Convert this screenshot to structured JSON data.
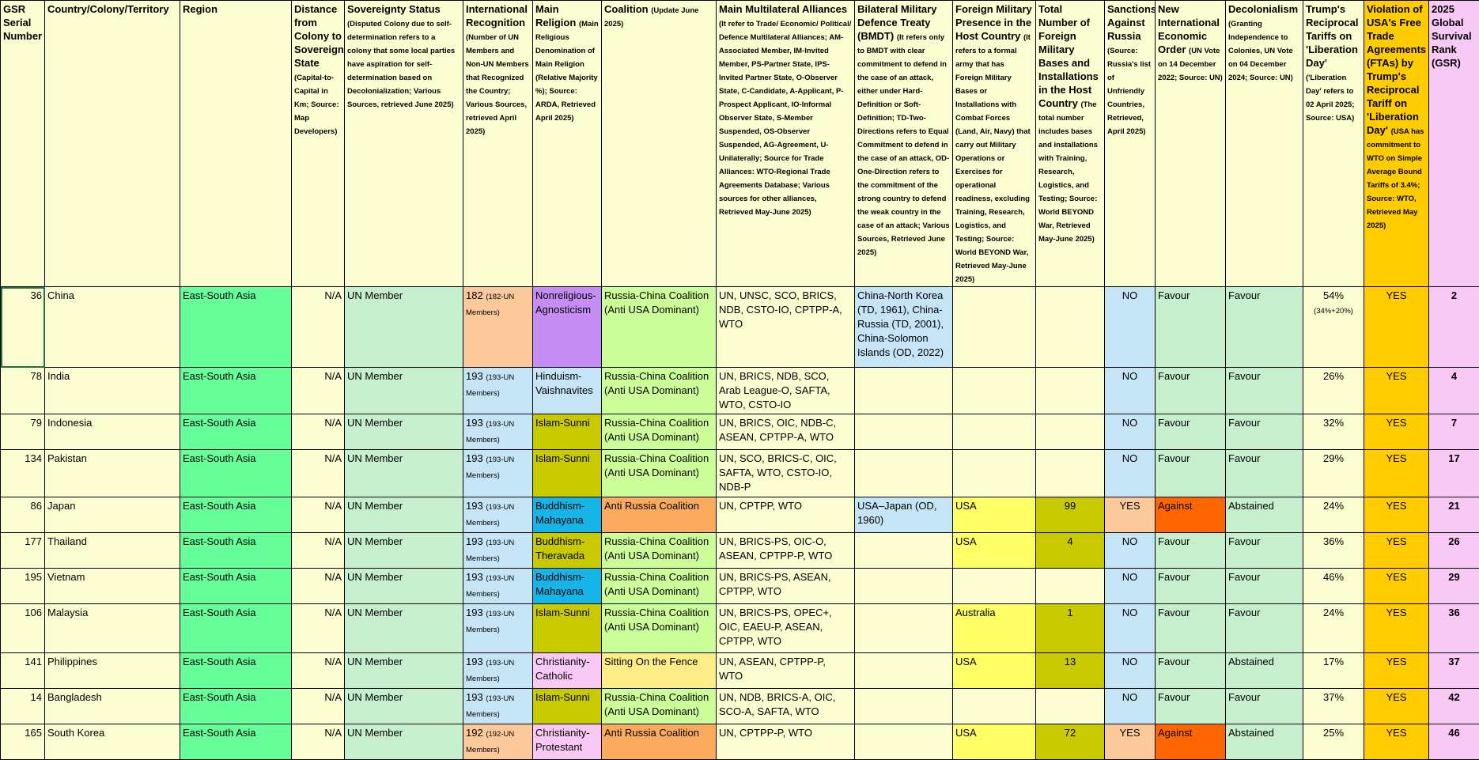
{
  "headers": {
    "serial": "GSR Serial Number",
    "country": "Country/Colony/Territory",
    "region": "Region",
    "distance": "Distance from Colony to Sovereign State",
    "distance_note": "(Capital-to-Capital in Km; Source: Map Developers)",
    "sovereignty": "Sovereignty Status",
    "sovereignty_note": "(Disputed Colony due to self-determination refers to a colony that some local parties have aspiration for self-determination based on Decolonialization; Various Sources, retrieved June 2025)",
    "recognition": "International Recognition",
    "recognition_note": "(Number of UN Members and Non-UN Members that Recognized the Country; Various Sources, retrieved April 2025)",
    "religion": "Main Religion",
    "religion_note": "(Main Religious Denomination of Main Religion (Relative Majority %); Source: ARDA, Retrieved April 2025)",
    "coalition": "Coalition",
    "coalition_note": "(Update June 2025)",
    "alliances": "Main Multilateral Alliances",
    "alliances_note": "(It refer to Trade/ Economic/ Political/ Defence Multilateral Alliances; AM-Associated Member, IM-Invited Member, PS-Partner State, IPS-Invited Partner State, O-Observer State, C-Candidate, A-Applicant, P-Prospect Applicant, IO-Informal Observer State, S-Member Suspended, OS-Observer Suspended, AG-Agreement, U-Unilaterally; Source for Trade Alliances: WTO-Regional Trade Agreements Database; Various sources for other alliances, Retrieved May-June 2025)",
    "bmdt": "Bilateral Military Defence Treaty (BMDT)",
    "bmdt_note": "(It refers only to BMDT with clear commitment to defend in the case of an attack, either under Hard-Definition or Soft-Definition; TD-Two-Directions refers to Equal Commitment to defend in the case of an attack, OD-One-Direction refers to the commitment of the strong country to defend the weak country in the case of an attack; Various Sources, Retrieved June 2025)",
    "fmp": "Foreign Military Presence in the Host Country",
    "fmp_note": "(It refers to a formal army that has Foreign Military Bases or Installations with Combat Forces (Land, Air, Navy) that carry out Military Operations or Exercises for operational readiness, excluding Training, Research, Logistics, and Testing; Source: World BEYOND War, Retrieved May-June 2025)",
    "bases": "Total Number of Foreign Military Bases and Installations in the Host Country",
    "bases_note": "(The total number includes bases and installations with Training, Research, Logistics, and Testing; Source: World BEYOND War, Retrieved May-June 2025)",
    "sanctions": "Sanctions Against Russia",
    "sanctions_note": "(Source: Russia's list of Unfriendly Countries, Retrieved, April 2025)",
    "nieo": "New International Economic Order",
    "nieo_note": "(UN Vote on 14 December 2022; Source: UN)",
    "decol": "Decolonialism",
    "decol_note": "(Granting Independence to Colonies, UN Vote on 04 December 2024; Source: UN)",
    "tariffs": "Trump's Reciprocal Tariffs on 'Liberation Day'",
    "tariffs_note": "('Liberation Day' refers to 02 April 2025; Source: USA)",
    "fta": "Violation of USA's Free Trade Agreements (FTAs) by Trump's Reciprocal Tariff on 'Liberation Day'",
    "fta_note": "(USA has commitment to WTO on Simple Average Bound Tariffs of 3.4%; Source: WTO, Retrieved May 2025)",
    "rank": "2025 Global Survival Rank (GSR)"
  },
  "rows": [
    {
      "serial": "36",
      "country": "China",
      "region": "East-South Asia",
      "distance": "N/A",
      "status": "UN Member",
      "recognition": "182",
      "recognition_detail": "(182-UN Members)",
      "religion": "Nonreligious-Agnosticism",
      "coalition": "Russia-China Coalition (Anti USA Dominant)",
      "alliances": "UN, UNSC, SCO, BRICS, NDB, CSTO-IO, CPTPP-A, WTO",
      "bmdt": "China-North Korea (TD, 1961), China-Russia (TD, 2001), China-Solomon Islands (OD, 2022)",
      "fmp": "",
      "bases": "",
      "sanctions": "NO",
      "nieo": "Favour",
      "decol": "Favour",
      "tariff": "54%",
      "tariff_detail": "(34%+20%)",
      "fta": "YES",
      "rank": "2"
    },
    {
      "serial": "78",
      "country": "India",
      "region": "East-South Asia",
      "distance": "N/A",
      "status": "UN Member",
      "recognition": "193",
      "recognition_detail": "(193-UN Members)",
      "religion": "Hinduism-Vaishnavites",
      "coalition": "Russia-China Coalition (Anti USA Dominant)",
      "alliances": "UN, BRICS, NDB, SCO, Arab League-O, SAFTA, WTO, CSTO-IO",
      "bmdt": "",
      "fmp": "",
      "bases": "",
      "sanctions": "NO",
      "nieo": "Favour",
      "decol": "Favour",
      "tariff": "26%",
      "tariff_detail": "",
      "fta": "YES",
      "rank": "4"
    },
    {
      "serial": "79",
      "country": "Indonesia",
      "region": "East-South Asia",
      "distance": "N/A",
      "status": "UN Member",
      "recognition": "193",
      "recognition_detail": "(193-UN Members)",
      "religion": "Islam-Sunni",
      "coalition": "Russia-China Coalition (Anti USA Dominant)",
      "alliances": "UN, BRICS, OIC, NDB-C, ASEAN, CPTPP-A, WTO",
      "bmdt": "",
      "fmp": "",
      "bases": "",
      "sanctions": "NO",
      "nieo": "Favour",
      "decol": "Favour",
      "tariff": "32%",
      "tariff_detail": "",
      "fta": "YES",
      "rank": "7"
    },
    {
      "serial": "134",
      "country": "Pakistan",
      "region": "East-South Asia",
      "distance": "N/A",
      "status": "UN Member",
      "recognition": "193",
      "recognition_detail": "(193-UN Members)",
      "religion": "Islam-Sunni",
      "coalition": "Russia-China Coalition (Anti USA Dominant)",
      "alliances": "UN, SCO, BRICS-C, OIC, SAFTA, WTO, CSTO-IO, NDB-P",
      "bmdt": "",
      "fmp": "",
      "bases": "",
      "sanctions": "NO",
      "nieo": "Favour",
      "decol": "Favour",
      "tariff": "29%",
      "tariff_detail": "",
      "fta": "YES",
      "rank": "17"
    },
    {
      "serial": "86",
      "country": "Japan",
      "region": "East-South Asia",
      "distance": "N/A",
      "status": "UN Member",
      "recognition": "193",
      "recognition_detail": "(193-UN Members)",
      "religion": "Buddhism-Mahayana",
      "coalition": "Anti Russia Coalition",
      "alliances": "UN, CPTPP, WTO",
      "bmdt": "USA–Japan (OD, 1960)",
      "fmp": "USA",
      "bases": "99",
      "sanctions": "YES",
      "nieo": "Against",
      "decol": "Abstained",
      "tariff": "24%",
      "tariff_detail": "",
      "fta": "YES",
      "rank": "21"
    },
    {
      "serial": "177",
      "country": "Thailand",
      "region": "East-South Asia",
      "distance": "N/A",
      "status": "UN Member",
      "recognition": "193",
      "recognition_detail": "(193-UN Members)",
      "religion": "Buddhism-Theravada",
      "coalition": "Russia-China Coalition (Anti USA Dominant)",
      "alliances": "UN, BRICS-PS, OIC-O, ASEAN, CPTPP-P, WTO",
      "bmdt": "",
      "fmp": "USA",
      "bases": "4",
      "sanctions": "NO",
      "nieo": "Favour",
      "decol": "Favour",
      "tariff": "36%",
      "tariff_detail": "",
      "fta": "YES",
      "rank": "26"
    },
    {
      "serial": "195",
      "country": "Vietnam",
      "region": "East-South Asia",
      "distance": "N/A",
      "status": "UN Member",
      "recognition": "193",
      "recognition_detail": "(193-UN Members)",
      "religion": "Buddhism-Mahayana",
      "coalition": "Russia-China Coalition (Anti USA Dominant)",
      "alliances": "UN, BRICS-PS, ASEAN, CPTPP, WTO",
      "bmdt": "",
      "fmp": "",
      "bases": "",
      "sanctions": "NO",
      "nieo": "Favour",
      "decol": "Favour",
      "tariff": "46%",
      "tariff_detail": "",
      "fta": "YES",
      "rank": "29"
    },
    {
      "serial": "106",
      "country": "Malaysia",
      "region": "East-South Asia",
      "distance": "N/A",
      "status": "UN Member",
      "recognition": "193",
      "recognition_detail": "(193-UN Members)",
      "religion": "Islam-Sunni",
      "coalition": "Russia-China Coalition (Anti USA Dominant)",
      "alliances": "UN, BRICS-PS, OPEC+, OIC, EAEU-P, ASEAN, CPTPP, WTO",
      "bmdt": "",
      "fmp": "Australia",
      "bases": "1",
      "sanctions": "NO",
      "nieo": "Favour",
      "decol": "Favour",
      "tariff": "24%",
      "tariff_detail": "",
      "fta": "YES",
      "rank": "36"
    },
    {
      "serial": "141",
      "country": "Philippines",
      "region": "East-South Asia",
      "distance": "N/A",
      "status": "UN Member",
      "recognition": "193",
      "recognition_detail": "(193-UN Members)",
      "religion": "Christianity-Catholic",
      "coalition": "Sitting On the Fence",
      "alliances": "UN, ASEAN, CPTPP-P, WTO",
      "bmdt": "",
      "fmp": "USA",
      "bases": "13",
      "sanctions": "NO",
      "nieo": "Favour",
      "decol": "Abstained",
      "tariff": "17%",
      "tariff_detail": "",
      "fta": "YES",
      "rank": "37"
    },
    {
      "serial": "14",
      "country": "Bangladesh",
      "region": "East-South Asia",
      "distance": "N/A",
      "status": "UN Member",
      "recognition": "193",
      "recognition_detail": "(193-UN Members)",
      "religion": "Islam-Sunni",
      "coalition": "Russia-China Coalition (Anti USA Dominant)",
      "alliances": "UN, NDB, BRICS-A, OIC, SCO-A, SAFTA, WTO",
      "bmdt": "",
      "fmp": "",
      "bases": "",
      "sanctions": "NO",
      "nieo": "Favour",
      "decol": "Favour",
      "tariff": "37%",
      "tariff_detail": "",
      "fta": "YES",
      "rank": "42"
    },
    {
      "serial": "165",
      "country": "South Korea",
      "region": "East-South Asia",
      "distance": "N/A",
      "status": "UN Member",
      "recognition": "192",
      "recognition_detail": "(192-UN Members)",
      "religion": "Christianity-Protestant",
      "coalition": "Anti Russia Coalition",
      "alliances": "UN, CPTPP-P, WTO",
      "bmdt": "",
      "fmp": "USA",
      "bases": "72",
      "sanctions": "YES",
      "nieo": "Against",
      "decol": "Abstained",
      "tariff": "25%",
      "tariff_detail": "",
      "fta": "YES",
      "rank": "46"
    }
  ]
}
